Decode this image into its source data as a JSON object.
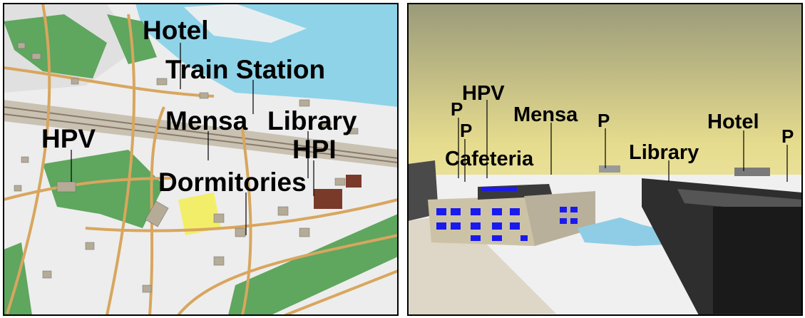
{
  "panels": [
    {
      "labels": [
        "Hotel",
        "Train Station",
        "Mensa",
        "Library",
        "HPV",
        "HPI",
        "Dormitories"
      ]
    },
    {
      "labels": [
        "P",
        "HPV",
        "P",
        "Mensa",
        "P",
        "Cafeteria",
        "Library",
        "Hotel",
        "P"
      ]
    }
  ]
}
